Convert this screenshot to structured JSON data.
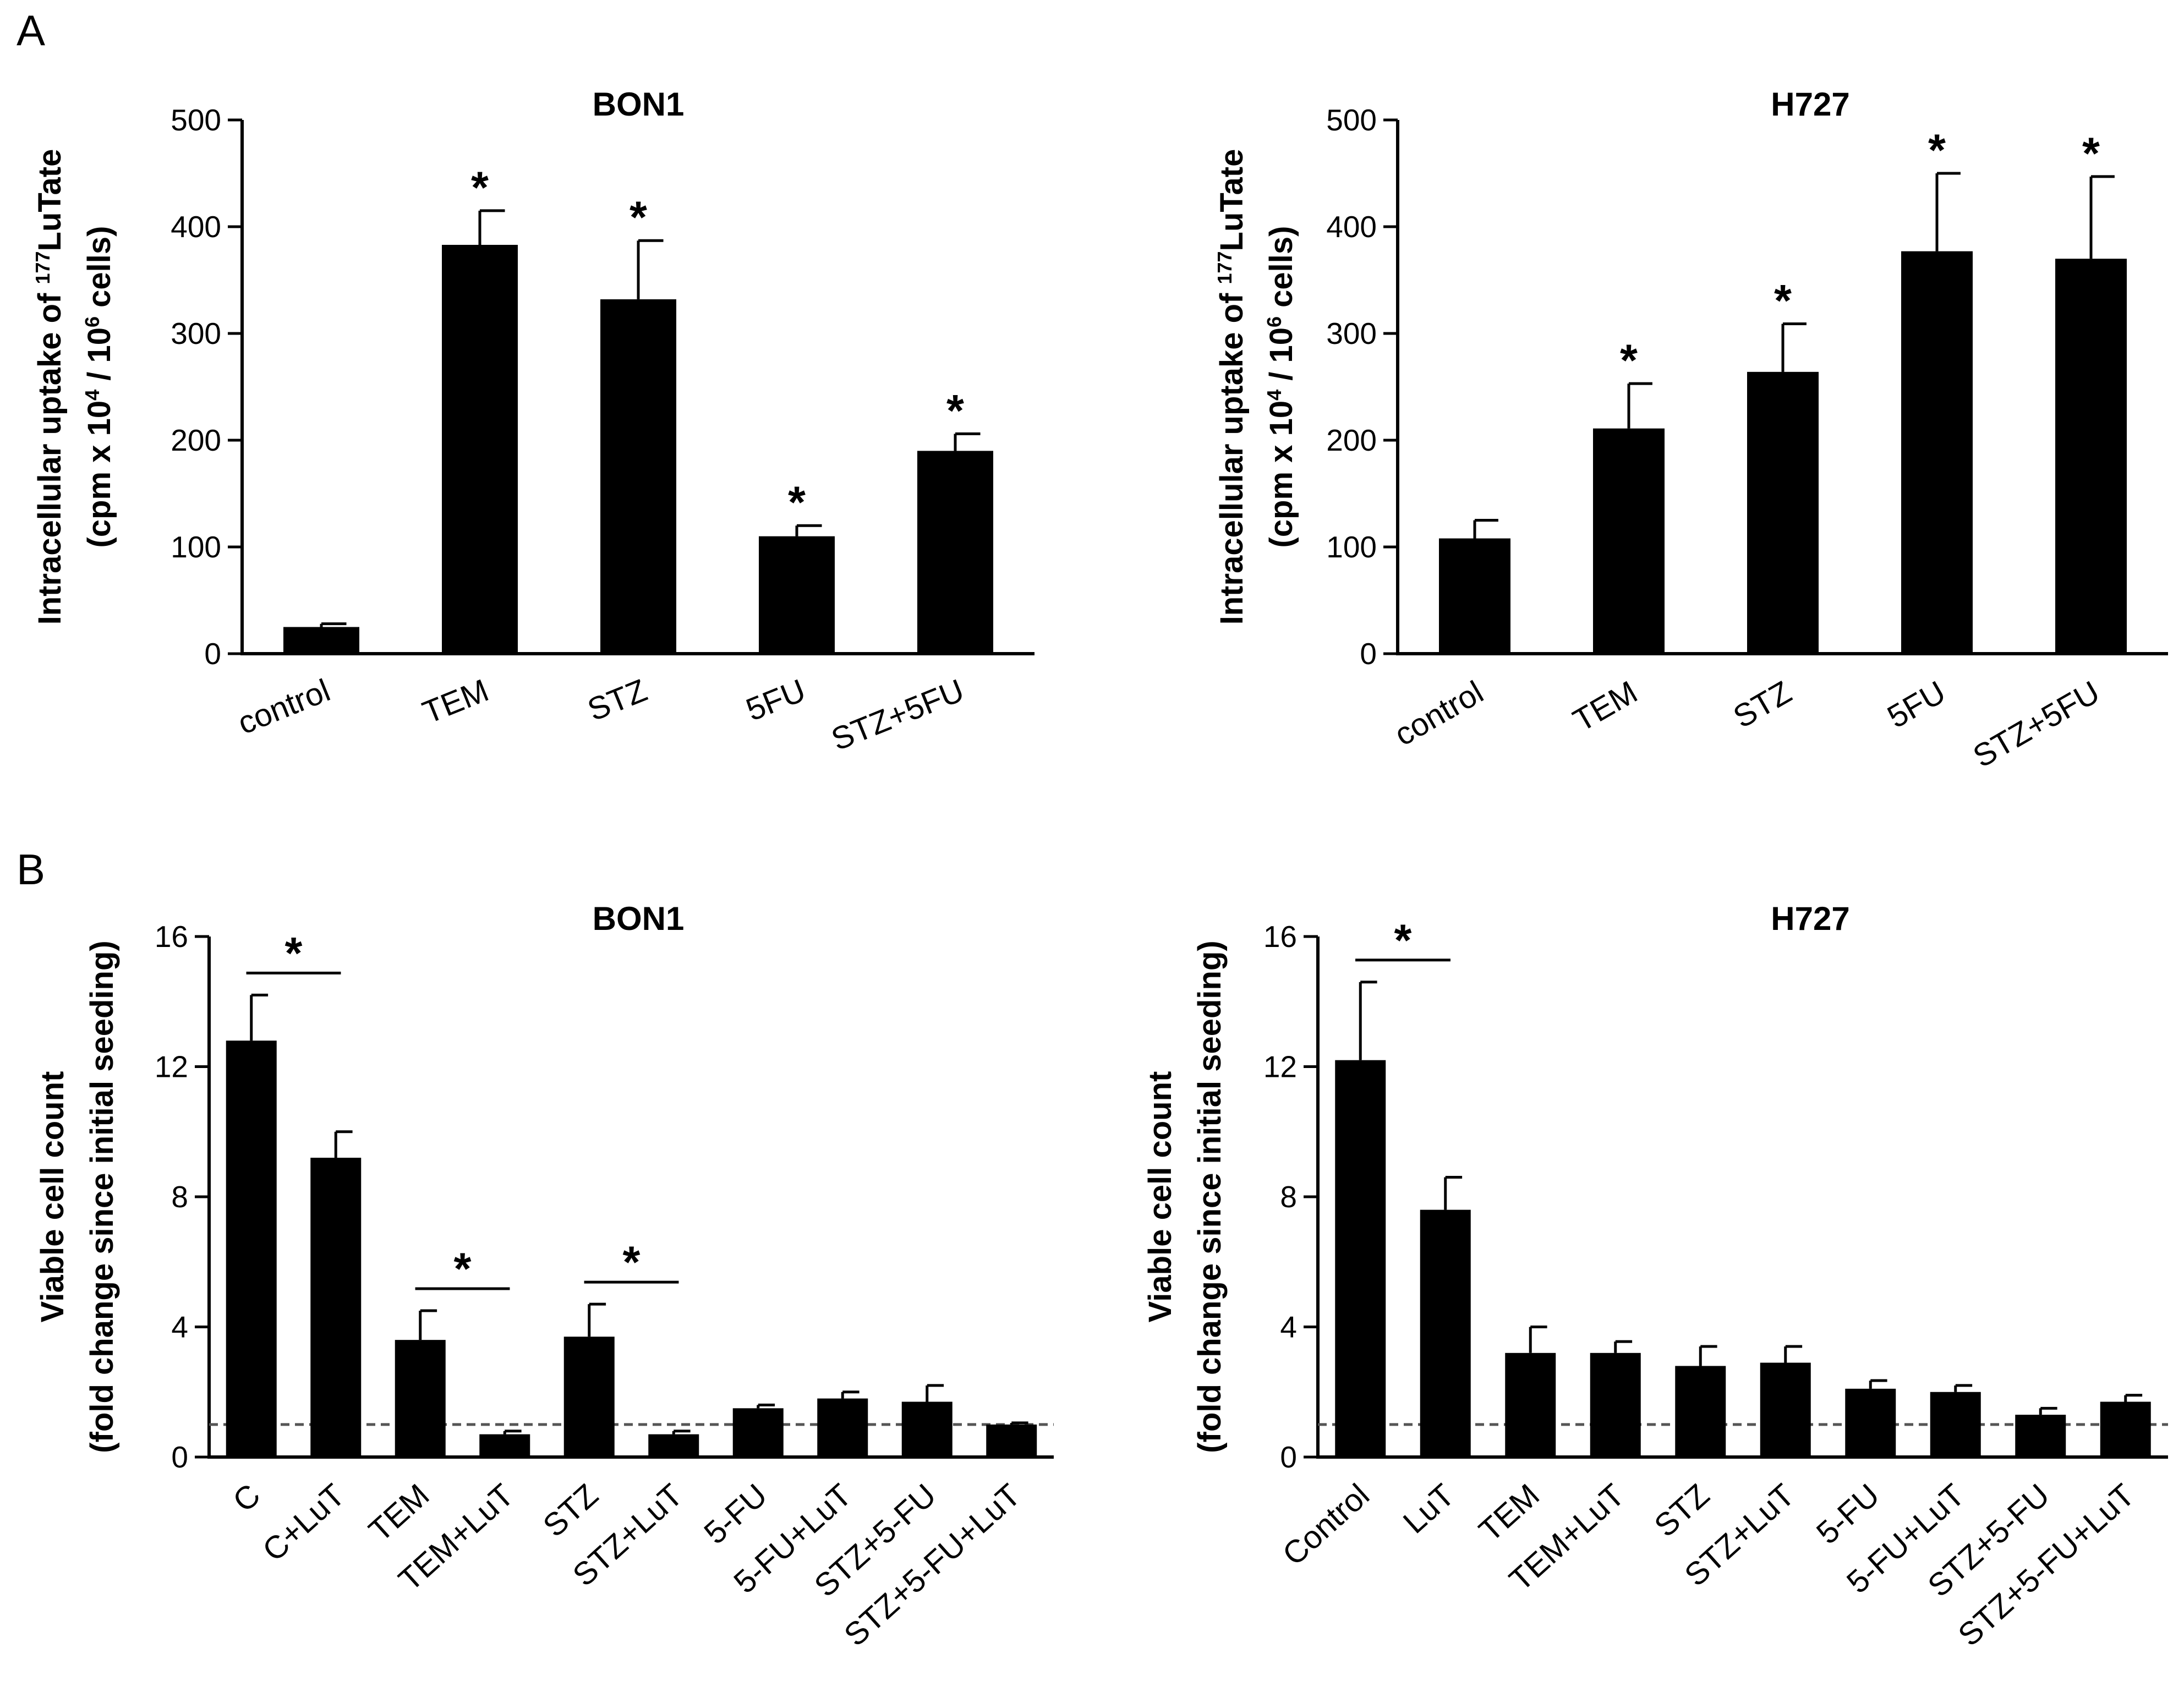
{
  "panels": [
    {
      "letter": "A"
    },
    {
      "letter": "B"
    }
  ],
  "chart_data": [
    {
      "type": "bar",
      "panel": "A",
      "title": "BON1",
      "ylabel_line1": "Intracellular uptake of 177LuTate",
      "ylabel_line2": "(cpm x 10^4 / 10^6 cells)",
      "ylabel_parts": {
        "line1": [
          {
            "t": "Intracellular uptake of ",
            "sup": false
          },
          {
            "t": "177",
            "sup": true
          },
          {
            "t": "LuTate",
            "sup": false
          }
        ],
        "line2": [
          {
            "t": "(cpm x 10",
            "sup": false
          },
          {
            "t": "4",
            "sup": true
          },
          {
            "t": " / 10",
            "sup": false
          },
          {
            "t": "6",
            "sup": true
          },
          {
            "t": " cells)",
            "sup": false
          }
        ]
      },
      "categories": [
        "control",
        "TEM",
        "STZ",
        "5FU",
        "STZ+5FU"
      ],
      "values": [
        25,
        383,
        332,
        110,
        190
      ],
      "errors": [
        3,
        32,
        55,
        10,
        16
      ],
      "significant": [
        false,
        true,
        true,
        true,
        true
      ],
      "ylim": [
        0,
        500
      ],
      "yticks": [
        0,
        100,
        200,
        300,
        400,
        500
      ],
      "baseline": null,
      "brackets": []
    },
    {
      "type": "bar",
      "panel": "A",
      "title": "H727",
      "ylabel_line1": "Intracellular uptake of 177LuTate",
      "ylabel_line2": "(cpm x 10^4 / 10^6 cells)",
      "ylabel_parts": {
        "line1": [
          {
            "t": "Intracellular uptake of ",
            "sup": false
          },
          {
            "t": "177",
            "sup": true
          },
          {
            "t": "LuTate",
            "sup": false
          }
        ],
        "line2": [
          {
            "t": "(cpm x 10",
            "sup": false
          },
          {
            "t": "4",
            "sup": true
          },
          {
            "t": " / 10",
            "sup": false
          },
          {
            "t": "6",
            "sup": true
          },
          {
            "t": " cells)",
            "sup": false
          }
        ]
      },
      "categories": [
        "control",
        "TEM",
        "STZ",
        "5FU",
        "STZ+5FU"
      ],
      "values": [
        108,
        211,
        264,
        377,
        370
      ],
      "errors": [
        17,
        42,
        45,
        73,
        77
      ],
      "significant": [
        false,
        true,
        true,
        true,
        true
      ],
      "ylim": [
        0,
        500
      ],
      "yticks": [
        0,
        100,
        200,
        300,
        400,
        500
      ],
      "baseline": null,
      "brackets": []
    },
    {
      "type": "bar",
      "panel": "B",
      "title": "BON1",
      "ylabel_line1": "Viable cell count",
      "ylabel_line2": "(fold change since initial seeding)",
      "ylabel_parts": {
        "line1": [
          {
            "t": "Viable cell count",
            "sup": false
          }
        ],
        "line2": [
          {
            "t": "(fold change since initial seeding)",
            "sup": false
          }
        ]
      },
      "categories": [
        "C",
        "C+LuT",
        "TEM",
        "TEM+LuT",
        "STZ",
        "STZ+LuT",
        "5-FU",
        "5-FU+LuT",
        "STZ+5-FU",
        "STZ+5-FU+LuT"
      ],
      "values": [
        12.8,
        9.2,
        3.6,
        0.7,
        3.7,
        0.7,
        1.5,
        1.8,
        1.7,
        1.0
      ],
      "errors": [
        1.4,
        0.8,
        0.9,
        0.1,
        1.0,
        0.1,
        0.1,
        0.2,
        0.5,
        0.05
      ],
      "significant": [
        false,
        false,
        false,
        false,
        false,
        false,
        false,
        false,
        false,
        false
      ],
      "ylim": [
        0,
        16
      ],
      "yticks": [
        0,
        4,
        8,
        12,
        16
      ],
      "baseline": 1,
      "brackets": [
        {
          "from": 0,
          "to": 1,
          "label": "*"
        },
        {
          "from": 2,
          "to": 3,
          "label": "*"
        },
        {
          "from": 4,
          "to": 5,
          "label": "*"
        }
      ]
    },
    {
      "type": "bar",
      "panel": "B",
      "title": "H727",
      "ylabel_line1": "Viable cell count",
      "ylabel_line2": "(fold change since initial seeding)",
      "ylabel_parts": {
        "line1": [
          {
            "t": "Viable cell count",
            "sup": false
          }
        ],
        "line2": [
          {
            "t": "(fold change since initial seeding)",
            "sup": false
          }
        ]
      },
      "categories": [
        "Control",
        "LuT",
        "TEM",
        "TEM+LuT",
        "STZ",
        "STZ+LuT",
        "5-FU",
        "5-FU+LuT",
        "STZ+5-FU",
        "STZ+5-FU+LuT"
      ],
      "values": [
        12.2,
        7.6,
        3.2,
        3.2,
        2.8,
        2.9,
        2.1,
        2.0,
        1.3,
        1.7
      ],
      "errors": [
        2.4,
        1.0,
        0.8,
        0.35,
        0.6,
        0.5,
        0.25,
        0.2,
        0.2,
        0.2
      ],
      "significant": [
        false,
        false,
        false,
        false,
        false,
        false,
        false,
        false,
        false,
        false
      ],
      "ylim": [
        0,
        16
      ],
      "yticks": [
        0,
        4,
        8,
        12,
        16
      ],
      "baseline": 1,
      "brackets": [
        {
          "from": 0,
          "to": 1,
          "label": "*"
        }
      ]
    }
  ]
}
